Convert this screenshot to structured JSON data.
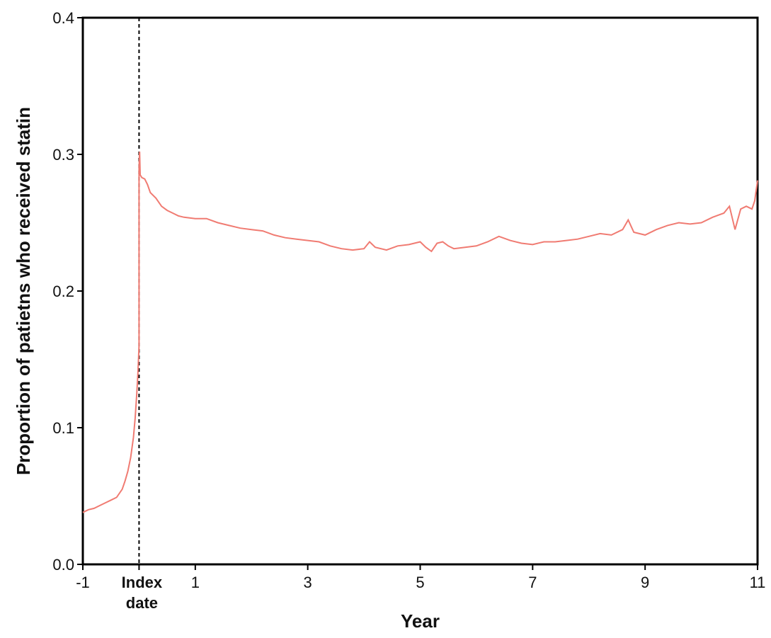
{
  "chart_data": {
    "type": "line",
    "title": "",
    "xlabel": "Year",
    "ylabel": "Proportion of patietns who received statin",
    "xlim": [
      -1,
      11
    ],
    "ylim": [
      0.0,
      0.4
    ],
    "x_ticks": [
      -1,
      1,
      3,
      5,
      7,
      9,
      11
    ],
    "x_tick_labels": [
      "-1",
      "1",
      "3",
      "5",
      "7",
      "9",
      "11"
    ],
    "y_ticks": [
      0.0,
      0.1,
      0.2,
      0.3,
      0.4
    ],
    "y_tick_labels": [
      "0.0",
      "0.1",
      "0.2",
      "0.3",
      "0.4"
    ],
    "grid": false,
    "legend": "none",
    "reference_line": {
      "x": 0,
      "style": "dashed",
      "color": "#000000",
      "label_line1": "Index",
      "label_line2": "date"
    },
    "series": [
      {
        "color": "#f07b72",
        "x": [
          -1.0,
          -0.9,
          -0.8,
          -0.7,
          -0.6,
          -0.5,
          -0.4,
          -0.3,
          -0.25,
          -0.2,
          -0.15,
          -0.1,
          -0.07,
          -0.04,
          -0.02,
          -0.01,
          0.0,
          0.0,
          0.01,
          0.02,
          0.05,
          0.1,
          0.15,
          0.2,
          0.3,
          0.4,
          0.5,
          0.6,
          0.7,
          0.8,
          1.0,
          1.2,
          1.4,
          1.6,
          1.8,
          2.0,
          2.2,
          2.4,
          2.6,
          2.8,
          3.0,
          3.2,
          3.4,
          3.6,
          3.8,
          4.0,
          4.1,
          4.2,
          4.4,
          4.6,
          4.8,
          5.0,
          5.1,
          5.2,
          5.3,
          5.4,
          5.5,
          5.6,
          5.8,
          6.0,
          6.2,
          6.4,
          6.6,
          6.8,
          7.0,
          7.2,
          7.4,
          7.6,
          7.8,
          8.0,
          8.2,
          8.4,
          8.6,
          8.7,
          8.8,
          9.0,
          9.2,
          9.4,
          9.6,
          9.8,
          10.0,
          10.2,
          10.4,
          10.5,
          10.6,
          10.7,
          10.8,
          10.9,
          10.95,
          11.0
        ],
        "y": [
          0.038,
          0.04,
          0.041,
          0.043,
          0.045,
          0.047,
          0.049,
          0.055,
          0.061,
          0.068,
          0.078,
          0.093,
          0.107,
          0.125,
          0.14,
          0.15,
          0.16,
          0.29,
          0.302,
          0.285,
          0.283,
          0.282,
          0.278,
          0.272,
          0.268,
          0.262,
          0.259,
          0.257,
          0.255,
          0.254,
          0.253,
          0.253,
          0.25,
          0.248,
          0.246,
          0.245,
          0.244,
          0.241,
          0.239,
          0.238,
          0.237,
          0.236,
          0.233,
          0.231,
          0.23,
          0.231,
          0.236,
          0.232,
          0.23,
          0.233,
          0.234,
          0.236,
          0.232,
          0.229,
          0.235,
          0.236,
          0.233,
          0.231,
          0.232,
          0.233,
          0.236,
          0.24,
          0.237,
          0.235,
          0.234,
          0.236,
          0.236,
          0.237,
          0.238,
          0.24,
          0.242,
          0.241,
          0.245,
          0.252,
          0.243,
          0.241,
          0.245,
          0.248,
          0.25,
          0.249,
          0.25,
          0.254,
          0.257,
          0.262,
          0.245,
          0.26,
          0.262,
          0.26,
          0.266,
          0.281
        ]
      }
    ]
  }
}
